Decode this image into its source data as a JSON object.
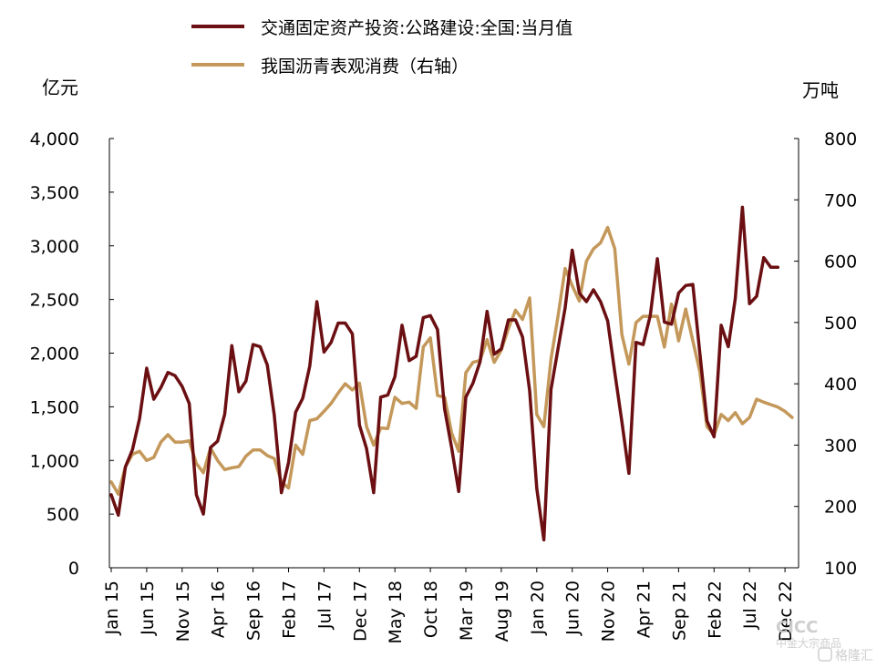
{
  "chart_data": {
    "type": "line",
    "legend": [
      {
        "name": "交通固定资产投资:公路建设:全国:当月值",
        "color": "#6b0f12"
      },
      {
        "name": "我国沥青表观消费（右轴）",
        "color": "#c4985a"
      }
    ],
    "left_unit": "亿元",
    "right_unit": "万吨",
    "left_ticks": [
      "0",
      "500",
      "1,000",
      "1,500",
      "2,000",
      "2,500",
      "3,000",
      "3,500",
      "4,000"
    ],
    "right_ticks": [
      "100",
      "200",
      "300",
      "400",
      "500",
      "600",
      "700",
      "800"
    ],
    "ylim_left": [
      0,
      4000
    ],
    "ylim_right": [
      100,
      800
    ],
    "x_tick_labels": [
      "Jan 15",
      "Jun 15",
      "Nov 15",
      "Apr 16",
      "Sep 16",
      "Feb 17",
      "Jul 17",
      "Dec 17",
      "May 18",
      "Oct 18",
      "Mar 19",
      "Aug 19",
      "Jan 20",
      "Jun 20",
      "Nov 20",
      "Apr 21",
      "Sep 21",
      "Feb 22",
      "Jul 22",
      "Dec 22"
    ],
    "x_tick_month_index": [
      0,
      5,
      10,
      15,
      20,
      25,
      30,
      35,
      40,
      45,
      50,
      55,
      60,
      65,
      70,
      75,
      80,
      85,
      90,
      95
    ],
    "series": [
      {
        "name": "交通固定资产投资:公路建设:全国:当月值",
        "axis": "left",
        "color": "#6b0f12",
        "start_index": 0,
        "values": [
          680,
          490,
          940,
          1100,
          1390,
          1860,
          1570,
          1680,
          1820,
          1790,
          1690,
          1530,
          680,
          500,
          1120,
          1180,
          1430,
          2070,
          1640,
          1740,
          2080,
          2060,
          1890,
          1420,
          700,
          980,
          1450,
          1580,
          1880,
          2480,
          2010,
          2100,
          2280,
          2280,
          2180,
          1330,
          1110,
          700,
          1590,
          1610,
          1780,
          2260,
          1930,
          1970,
          2330,
          2350,
          2220,
          1480,
          1120,
          710,
          1590,
          1720,
          1920,
          2390,
          1990,
          2040,
          2310,
          2310,
          2150,
          1650,
          740,
          260,
          1660,
          2040,
          2420,
          2960,
          2560,
          2480,
          2590,
          2480,
          2300,
          1820,
          1360,
          880,
          2100,
          2080,
          2350,
          2880,
          2290,
          2270,
          2560,
          2630,
          2640,
          2000,
          1370,
          1220,
          2260,
          2060,
          2510,
          3360,
          2460,
          2530,
          2890,
          2800,
          2800
        ]
      },
      {
        "name": "我国沥青表观消费（右轴）",
        "axis": "right",
        "color": "#c4985a",
        "start_index": 0,
        "values": [
          240,
          220,
          265,
          285,
          290,
          275,
          280,
          305,
          317,
          305,
          305,
          307,
          270,
          255,
          295,
          275,
          260,
          263,
          265,
          282,
          292,
          292,
          283,
          278,
          240,
          230,
          300,
          285,
          340,
          343,
          355,
          368,
          385,
          400,
          390,
          401,
          330,
          300,
          328,
          327,
          378,
          368,
          370,
          360,
          460,
          475,
          381,
          378,
          320,
          290,
          418,
          435,
          438,
          472,
          435,
          455,
          490,
          520,
          505,
          540,
          350,
          330,
          440,
          510,
          588,
          560,
          535,
          600,
          620,
          630,
          655,
          620,
          480,
          432,
          500,
          510,
          510,
          510,
          460,
          530,
          470,
          522,
          470,
          420,
          330,
          317,
          350,
          340,
          353,
          335,
          345,
          375,
          370,
          366,
          362,
          355,
          345
        ]
      }
    ],
    "watermark": [
      "CICC",
      "中金大宗商品",
      "格隆汇"
    ]
  }
}
